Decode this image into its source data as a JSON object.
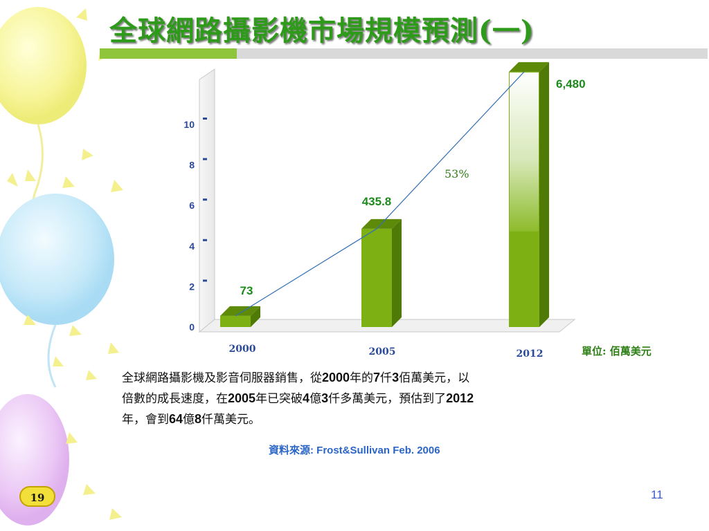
{
  "title": "全球網路攝影機市場規模預測(一)",
  "unit_label": "單位: 佰萬美元",
  "description": {
    "line1": [
      "全球網路攝影機及影音伺服器銷售，從",
      "2000",
      "年的",
      "7",
      "仟",
      "3",
      "佰萬美元，以"
    ],
    "line2": [
      "倍數的成長速度，在",
      "2005",
      "年已突破",
      "4",
      "億",
      "3",
      "仟多萬美元，預估到了",
      "2012"
    ],
    "line3": [
      "年，會到",
      "64",
      "億",
      "8",
      "仟萬美元。"
    ]
  },
  "source": {
    "label": "資料來源",
    "value": ": Frost&Sullivan Feb. 2006"
  },
  "slide_badge": "19",
  "page_number": "11",
  "colors": {
    "title": "#2e9a1a",
    "bar_front": "#7db012",
    "bar_side": "#4f7a06",
    "bar_top": "#5e8a0a",
    "value_label": "#1d8a1d",
    "axis_text": "#2b4a9a",
    "growth_line": "#2f6fb5"
  },
  "chart_data": {
    "type": "bar",
    "categories": [
      "2000",
      "2005",
      "2012"
    ],
    "values": [
      73,
      435.8,
      6480
    ],
    "value_labels": [
      "73",
      "435.8",
      "6,480"
    ],
    "yticks": [
      "0",
      "2",
      "4",
      "6",
      "8",
      "10"
    ],
    "ylim": [
      0,
      10
    ],
    "bar_heights_in_axis_units": [
      0.55,
      4.85,
      12.6
    ],
    "growth_annotation": "53%",
    "legend": false,
    "grid": false,
    "title": "",
    "xlabel": "",
    "ylabel": ""
  }
}
